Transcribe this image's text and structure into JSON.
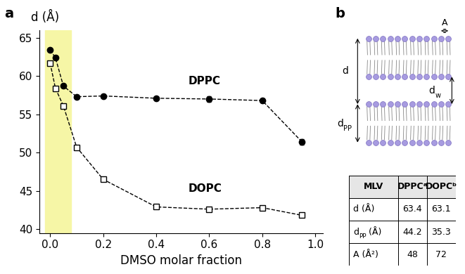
{
  "panels": [
    "a",
    "b"
  ],
  "chart_data": {
    "type": "line",
    "xlabel": "DMSO molar fraction",
    "ylabel": "d (Å)",
    "xlim": [
      -0.04,
      1.03
    ],
    "ylim": [
      39.5,
      66
    ],
    "xticks": [
      {
        "value": 0,
        "label": "0.0"
      },
      0.2,
      0.4,
      0.6,
      0.8,
      {
        "value": 1,
        "label": "1.0"
      }
    ],
    "yticks": [
      40,
      45,
      50,
      55,
      60,
      65
    ],
    "highlight_x": [
      -0.02,
      0.08
    ],
    "series": [
      {
        "name": "DPPC",
        "color": "#000000",
        "marker": "filled_circle",
        "line_style": "dashed",
        "x": [
          0,
          0.02,
          0.05,
          0.1,
          0.2,
          0.4,
          0.6,
          0.8,
          0.95
        ],
        "values": [
          63.4,
          62.4,
          58.7,
          57.3,
          57.4,
          57.1,
          57.0,
          56.8,
          51.4
        ],
        "errors": [
          0.2,
          0.2,
          0.2,
          0.2,
          0.2,
          0.2,
          0.4,
          0.3,
          0.4
        ]
      },
      {
        "name": "DOPC",
        "color": "#000000",
        "marker": "open_square",
        "line_style": "dashed",
        "x": [
          0,
          0.02,
          0.05,
          0.1,
          0.2,
          0.4,
          0.6,
          0.8,
          0.95
        ],
        "values": [
          61.7,
          58.4,
          56.1,
          50.7,
          46.5,
          42.9,
          42.6,
          42.8,
          41.8
        ],
        "errors": [
          0.2,
          0.2,
          0.2,
          0.2,
          0.2,
          0.2,
          0.2,
          0.2,
          0.2
        ]
      }
    ]
  },
  "diagram": {
    "spacing": {
      "text": "A"
    },
    "period": {
      "text": "d"
    },
    "water": {
      "text": "d",
      "sub": "w"
    },
    "headgroup": {
      "text": "d",
      "sub": "PP"
    }
  },
  "table": {
    "header": [
      "MLV",
      "DPPCᵃ",
      "DOPCᵇ"
    ],
    "rows": [
      [
        {
          "text": "d (Å)"
        },
        63.4,
        63.1
      ],
      [
        {
          "text": "d",
          "sub": "PP",
          "after": " (Å)"
        },
        44.2,
        35.3
      ],
      [
        {
          "text": "A (Å²)"
        },
        48,
        72
      ]
    ]
  }
}
